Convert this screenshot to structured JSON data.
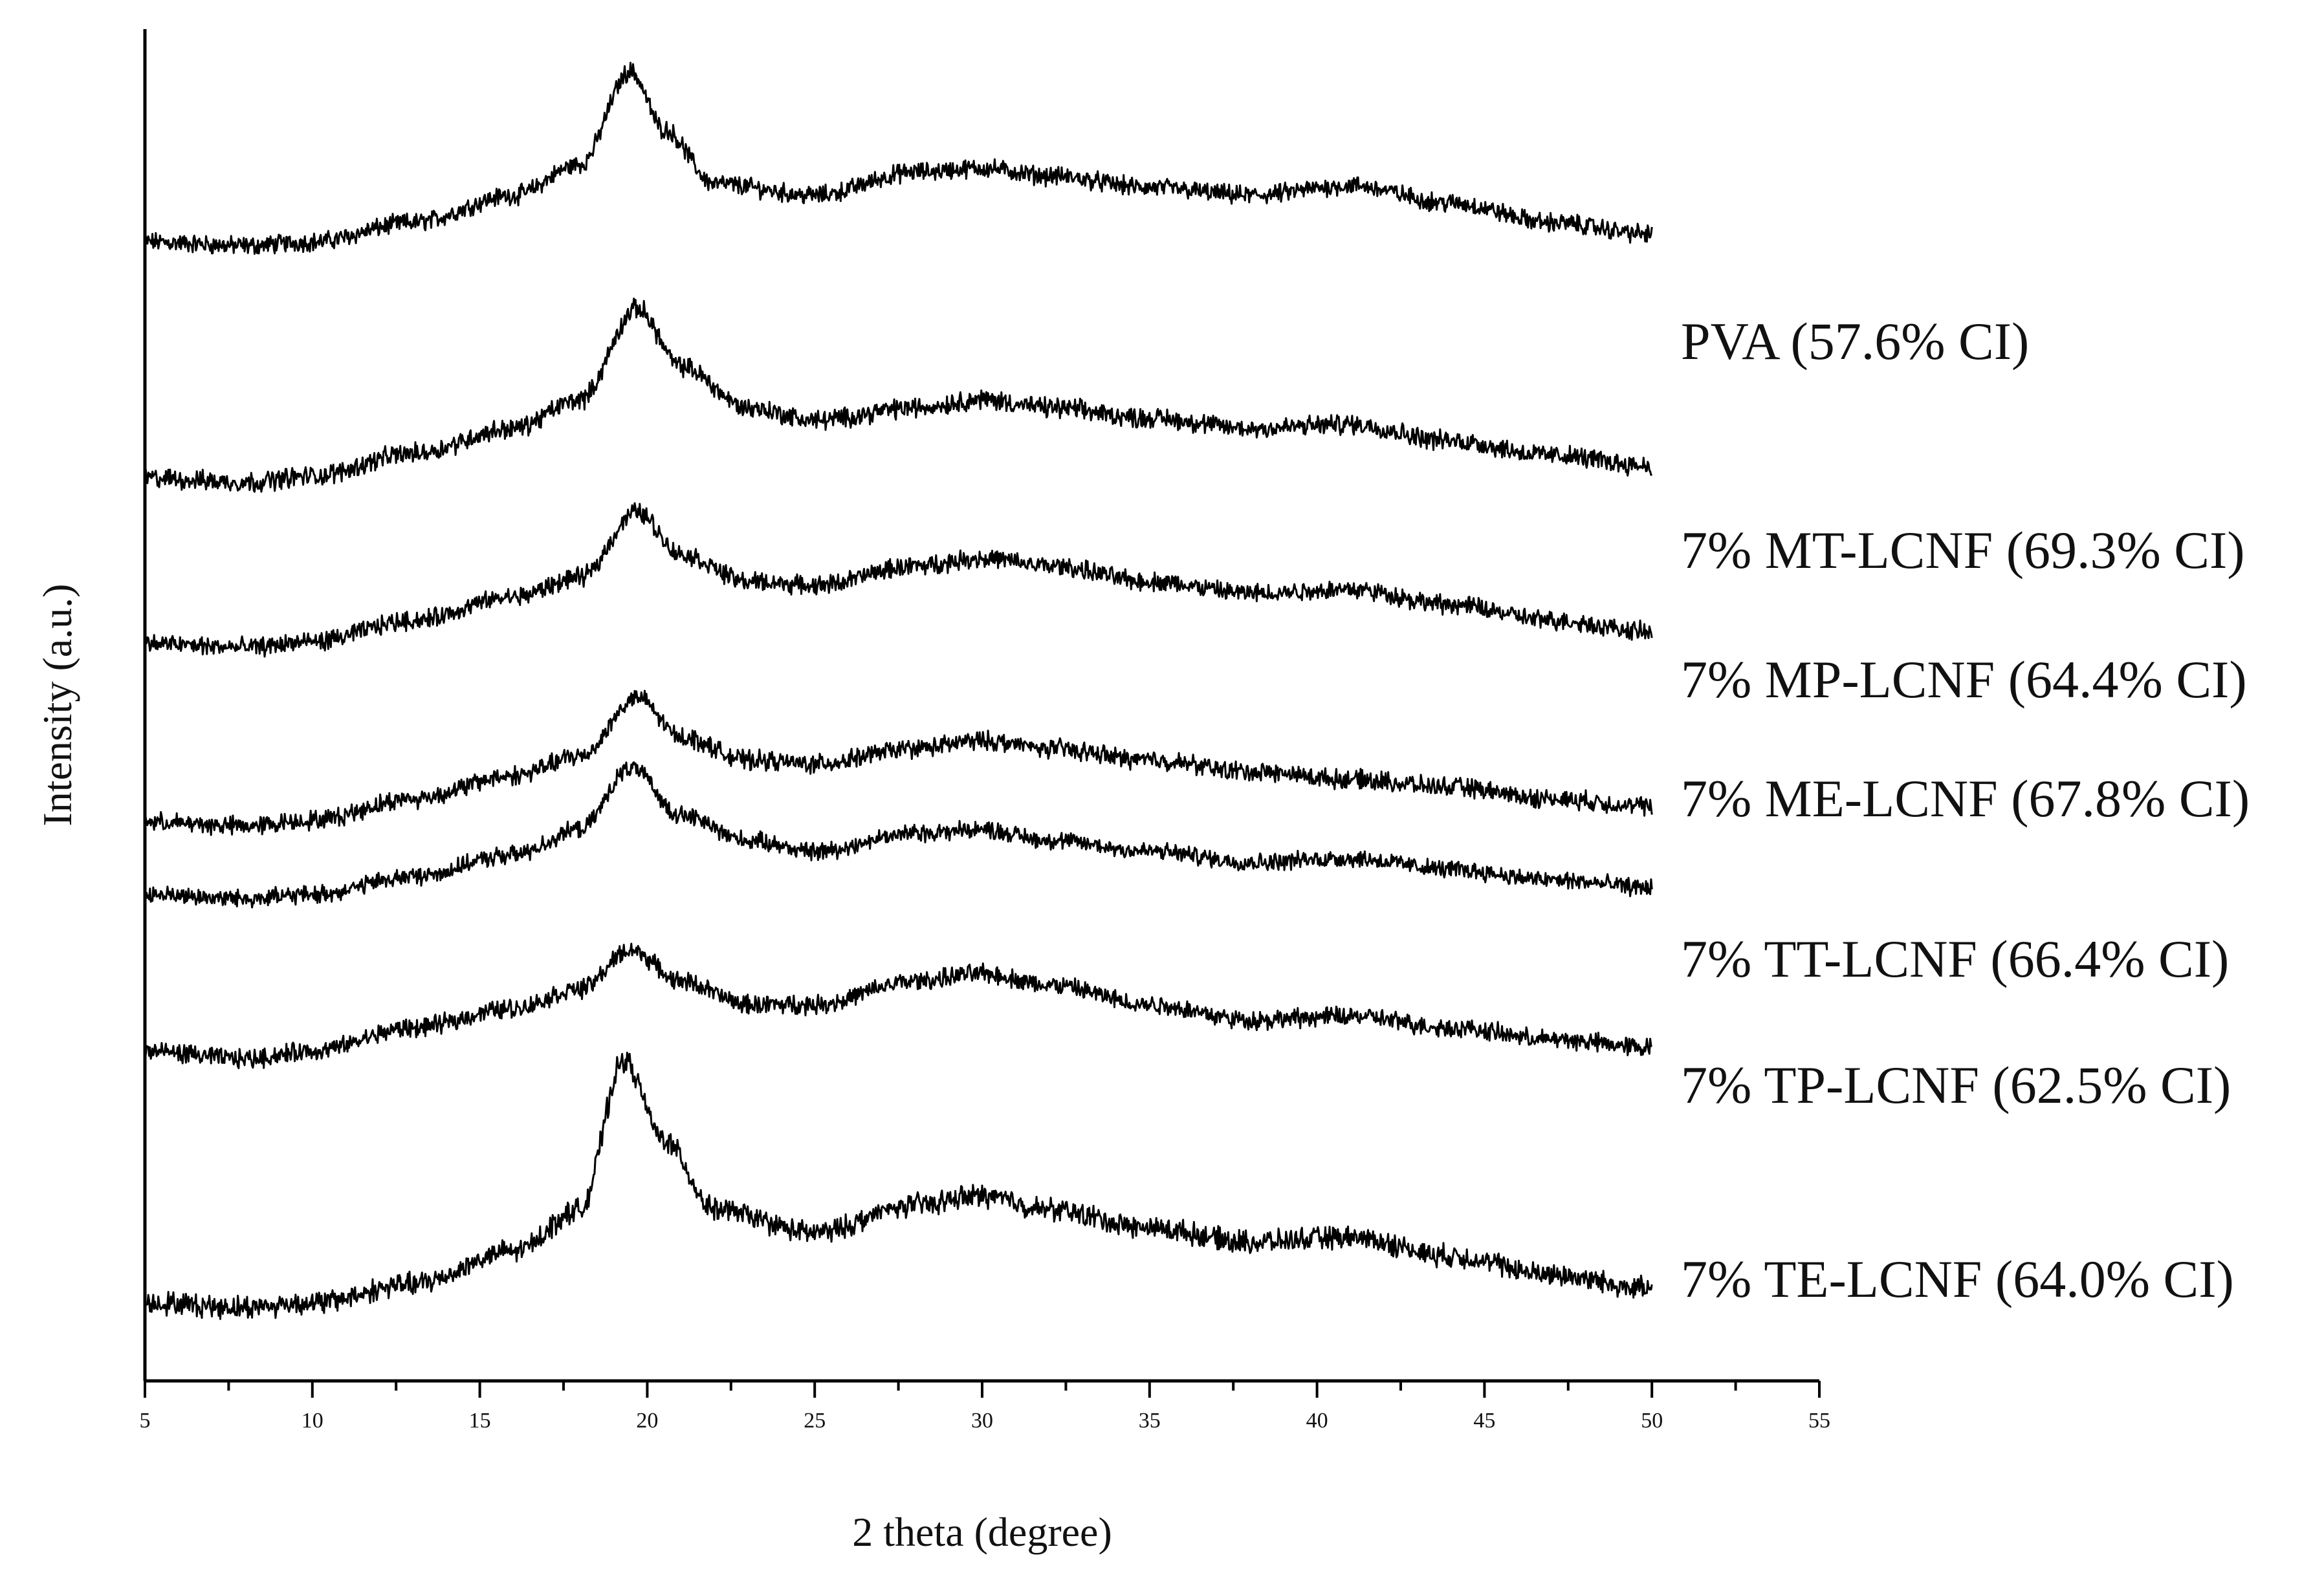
{
  "chart_data": {
    "type": "line",
    "title": "",
    "xlabel": "2 theta (degree)",
    "ylabel": "Intensity (a.u.)",
    "xlim": [
      5,
      55
    ],
    "xticks": [
      "5",
      "10",
      "15",
      "20",
      "25",
      "30",
      "35",
      "40",
      "45",
      "50",
      "55"
    ],
    "x_minor_step": 2.5,
    "y_tick_labels": false,
    "grid": false,
    "legend": "labels at right end of each trace",
    "x_range_data": [
      5,
      50
    ],
    "series": [
      {
        "name": "PVA (57.6% CI)",
        "key_points": [
          [
            5,
            0.62
          ],
          [
            8,
            0.6
          ],
          [
            10,
            0.62
          ],
          [
            13,
            0.72
          ],
          [
            16,
            0.86
          ],
          [
            18,
            1.02
          ],
          [
            19.5,
            1.5
          ],
          [
            20.5,
            1.2
          ],
          [
            22,
            0.92
          ],
          [
            25,
            0.86
          ],
          [
            28,
            0.98
          ],
          [
            30,
            1.0
          ],
          [
            32,
            0.96
          ],
          [
            35,
            0.9
          ],
          [
            38,
            0.86
          ],
          [
            41,
            0.91
          ],
          [
            44,
            0.82
          ],
          [
            47,
            0.72
          ],
          [
            50,
            0.66
          ]
        ]
      },
      {
        "name": "7% MT-LCNF (69.3% CI)",
        "key_points": [
          [
            5,
            0.44
          ],
          [
            8,
            0.42
          ],
          [
            10,
            0.45
          ],
          [
            13,
            0.56
          ],
          [
            16,
            0.68
          ],
          [
            18,
            0.82
          ],
          [
            19.7,
            1.26
          ],
          [
            21,
            0.98
          ],
          [
            23,
            0.78
          ],
          [
            25,
            0.72
          ],
          [
            28,
            0.78
          ],
          [
            30,
            0.82
          ],
          [
            32,
            0.78
          ],
          [
            35,
            0.73
          ],
          [
            38,
            0.68
          ],
          [
            41,
            0.7
          ],
          [
            44,
            0.62
          ],
          [
            47,
            0.55
          ],
          [
            50,
            0.5
          ]
        ]
      },
      {
        "name": "7% MP-LCNF (64.4% CI)",
        "key_points": [
          [
            5,
            0.3
          ],
          [
            8,
            0.28
          ],
          [
            10,
            0.31
          ],
          [
            13,
            0.42
          ],
          [
            16,
            0.54
          ],
          [
            18,
            0.64
          ],
          [
            19.7,
            0.98
          ],
          [
            21,
            0.76
          ],
          [
            23,
            0.62
          ],
          [
            25,
            0.6
          ],
          [
            28,
            0.7
          ],
          [
            30,
            0.74
          ],
          [
            32,
            0.7
          ],
          [
            35,
            0.62
          ],
          [
            38,
            0.56
          ],
          [
            41,
            0.58
          ],
          [
            44,
            0.5
          ],
          [
            47,
            0.42
          ],
          [
            50,
            0.36
          ]
        ]
      },
      {
        "name": "7% ME-LCNF (67.8% CI)",
        "key_points": [
          [
            5,
            0.08
          ],
          [
            8,
            0.06
          ],
          [
            10,
            0.09
          ],
          [
            13,
            0.2
          ],
          [
            16,
            0.32
          ],
          [
            18,
            0.42
          ],
          [
            19.7,
            0.72
          ],
          [
            21,
            0.52
          ],
          [
            23,
            0.4
          ],
          [
            25,
            0.38
          ],
          [
            28,
            0.46
          ],
          [
            30,
            0.5
          ],
          [
            32,
            0.46
          ],
          [
            35,
            0.4
          ],
          [
            38,
            0.34
          ],
          [
            41,
            0.3
          ],
          [
            44,
            0.26
          ],
          [
            47,
            0.2
          ],
          [
            50,
            0.16
          ]
        ]
      },
      {
        "name": "7% TT-LCNF (66.4% CI)",
        "key_points": [
          [
            5,
            0.56
          ],
          [
            8,
            0.54
          ],
          [
            10,
            0.56
          ],
          [
            13,
            0.66
          ],
          [
            16,
            0.78
          ],
          [
            18,
            0.92
          ],
          [
            19.5,
            1.26
          ],
          [
            21,
            1.0
          ],
          [
            23,
            0.86
          ],
          [
            25,
            0.8
          ],
          [
            28,
            0.9
          ],
          [
            30,
            0.92
          ],
          [
            32,
            0.86
          ],
          [
            35,
            0.8
          ],
          [
            38,
            0.74
          ],
          [
            41,
            0.76
          ],
          [
            44,
            0.7
          ],
          [
            47,
            0.64
          ],
          [
            50,
            0.6
          ]
        ]
      },
      {
        "name": "7% TP-LCNF (62.5% CI)",
        "key_points": [
          [
            5,
            0.4
          ],
          [
            8,
            0.36
          ],
          [
            10,
            0.4
          ],
          [
            13,
            0.52
          ],
          [
            16,
            0.62
          ],
          [
            18,
            0.72
          ],
          [
            19.5,
            0.92
          ],
          [
            21,
            0.76
          ],
          [
            23,
            0.64
          ],
          [
            25,
            0.64
          ],
          [
            28,
            0.76
          ],
          [
            30,
            0.8
          ],
          [
            32,
            0.74
          ],
          [
            35,
            0.64
          ],
          [
            38,
            0.56
          ],
          [
            41,
            0.58
          ],
          [
            44,
            0.52
          ],
          [
            47,
            0.46
          ],
          [
            50,
            0.42
          ]
        ]
      },
      {
        "name": "7% TE-LCNF (64.0% CI)",
        "key_points": [
          [
            5,
            0.1
          ],
          [
            8,
            0.08
          ],
          [
            10,
            0.1
          ],
          [
            13,
            0.18
          ],
          [
            16,
            0.32
          ],
          [
            18,
            0.5
          ],
          [
            19.3,
            1.14
          ],
          [
            20.5,
            0.8
          ],
          [
            22,
            0.5
          ],
          [
            25,
            0.4
          ],
          [
            28,
            0.52
          ],
          [
            30,
            0.56
          ],
          [
            32,
            0.5
          ],
          [
            35,
            0.42
          ],
          [
            38,
            0.36
          ],
          [
            41,
            0.38
          ],
          [
            44,
            0.3
          ],
          [
            47,
            0.22
          ],
          [
            50,
            0.16
          ]
        ]
      }
    ]
  }
}
